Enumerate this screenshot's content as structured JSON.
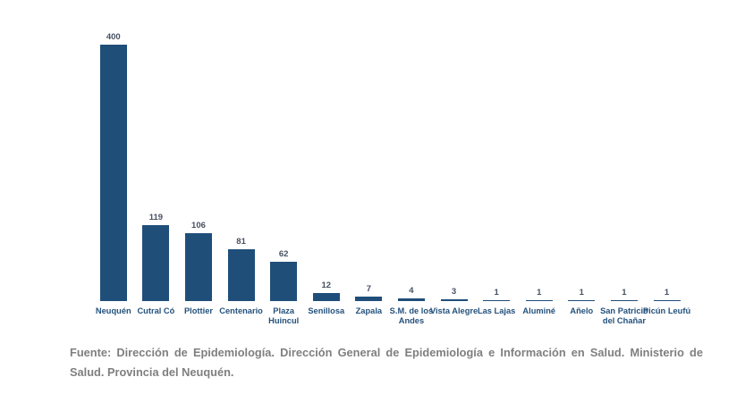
{
  "chart_data": {
    "type": "bar",
    "title": "",
    "xlabel": "",
    "ylabel": "",
    "categories": [
      "Neuquén",
      "Cutral Có",
      "Plottier",
      "Centenario",
      "Plaza Huincul",
      "Senillosa",
      "Zapala",
      "S.M. de los Andes",
      "Vista Alegre",
      "Las Lajas",
      "Aluminé",
      "Añelo",
      "San Patricio del Chañar",
      "Picún Leufú"
    ],
    "values": [
      400,
      119,
      106,
      81,
      62,
      12,
      7,
      4,
      3,
      1,
      1,
      1,
      1,
      1
    ],
    "category_label_lines": [
      [
        "Neuquén"
      ],
      [
        "Cutral Có"
      ],
      [
        "Plottier"
      ],
      [
        "Centenario"
      ],
      [
        "Plaza",
        "Huincul"
      ],
      [
        "Senillosa"
      ],
      [
        "Zapala"
      ],
      [
        "S.M. de los",
        "Andes"
      ],
      [
        "Vista Alegre"
      ],
      [
        "Las Lajas"
      ],
      [
        "Aluminé"
      ],
      [
        "Añelo"
      ],
      [
        "San Patricio",
        "del Chañar"
      ],
      [
        "Picún Leufú"
      ]
    ],
    "data_labels": true,
    "grid": false,
    "legend": false,
    "axis_lines": false,
    "ylim": [
      0,
      400
    ],
    "bar_color": "#1f4e79",
    "value_label_color": "#475062",
    "category_label_color": "#24517c"
  },
  "footer": {
    "lines": [
      "Fuente: Dirección de Epidemiología. Dirección General de Epidemiología e Información en Salud. Ministerio de",
      "Salud. Provincia del Neuquén."
    ],
    "text_color": "#7f7f7f"
  }
}
